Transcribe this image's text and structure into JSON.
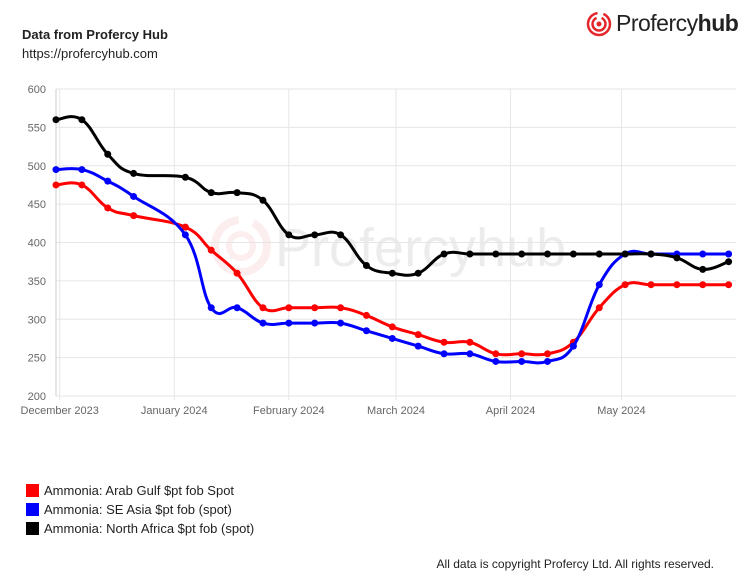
{
  "header": {
    "title": "Data from Profercy Hub",
    "url": "https://profercyhub.com"
  },
  "logo": {
    "text_light": "Profercy",
    "text_bold": "hub",
    "color": "#e3262b"
  },
  "footer": "All data is copyright Profercy Ltd. All rights reserved.",
  "chart_data": {
    "type": "line",
    "title": "",
    "xlabel": "",
    "ylabel": "",
    "ylim": [
      200,
      600
    ],
    "yticks": [
      200,
      250,
      300,
      350,
      400,
      450,
      500,
      550,
      600
    ],
    "xticks": [
      {
        "date": "2023-12-01",
        "label": "December 2023"
      },
      {
        "date": "2024-01-01",
        "label": "January 2024"
      },
      {
        "date": "2024-02-01",
        "label": "February 2024"
      },
      {
        "date": "2024-03-01",
        "label": "March 2024"
      },
      {
        "date": "2024-04-01",
        "label": "April 2024"
      },
      {
        "date": "2024-05-01",
        "label": "May 2024"
      }
    ],
    "xlim": [
      "2023-11-30",
      "2024-06-01"
    ],
    "grid": true,
    "legend_position": "bottom-left",
    "x": [
      "2023-11-30",
      "2023-12-07",
      "2023-12-14",
      "2023-12-21",
      "2024-01-04",
      "2024-01-11",
      "2024-01-18",
      "2024-01-25",
      "2024-02-01",
      "2024-02-08",
      "2024-02-15",
      "2024-02-22",
      "2024-02-29",
      "2024-03-07",
      "2024-03-14",
      "2024-03-21",
      "2024-03-28",
      "2024-04-04",
      "2024-04-11",
      "2024-04-18",
      "2024-04-25",
      "2024-05-02",
      "2024-05-09",
      "2024-05-16",
      "2024-05-23",
      "2024-05-30"
    ],
    "series": [
      {
        "name": "Ammonia: Arab Gulf $pt fob Spot",
        "color": "#ff0000",
        "values": [
          475,
          475,
          445,
          435,
          420,
          390,
          360,
          315,
          315,
          315,
          315,
          305,
          290,
          280,
          270,
          270,
          255,
          255,
          255,
          270,
          315,
          345,
          345,
          345,
          345,
          345
        ]
      },
      {
        "name": "Ammonia: SE Asia $pt fob (spot)",
        "color": "#0000ff",
        "values": [
          495,
          495,
          480,
          460,
          410,
          315,
          315,
          295,
          295,
          295,
          295,
          285,
          275,
          265,
          255,
          255,
          245,
          245,
          245,
          265,
          345,
          385,
          385,
          385,
          385,
          385
        ]
      },
      {
        "name": "Ammonia: North Africa $pt fob (spot)",
        "color": "#000000",
        "values": [
          560,
          560,
          515,
          490,
          485,
          465,
          465,
          455,
          410,
          410,
          410,
          370,
          360,
          360,
          385,
          385,
          385,
          385,
          385,
          385,
          385,
          385,
          385,
          380,
          365,
          375
        ]
      }
    ]
  }
}
